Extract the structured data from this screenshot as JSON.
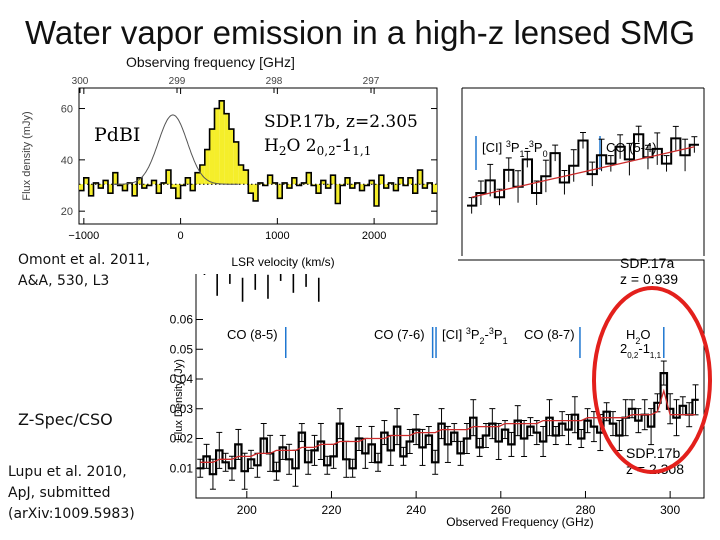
{
  "slide": {
    "title": "Water vapor emission in a high-z lensed SMG",
    "omont_ref": [
      "Omont et al. 2011,",
      "A&A, 530, L3"
    ],
    "zspec_label": "Z-Spec/CSO",
    "lupu_ref": [
      "Lupu et al. 2010,",
      "ApJ, submitted",
      "(arXiv:1009.5983)"
    ]
  },
  "chart_data": [
    {
      "id": "pdbi",
      "type": "bar",
      "instrument_label": "PdBI",
      "source_label": "SDP.17b, z=2.305",
      "line_label": "H2O 2(0,2)-1(1,1)",
      "line_label_parts": {
        "species": "H",
        "sub2": "2",
        "o": "O 2",
        "up": "0,2",
        "dash": "-1",
        "lo": "1,1"
      },
      "top_axis_label": "Observing frequency [GHz]",
      "top_ticks": [
        "300",
        "299",
        "298",
        "297"
      ],
      "xlabel": "LSR velocity  (km/s)",
      "ylabel": "Flux density  (mJy)",
      "x_ticks": [
        -1000,
        0,
        1000,
        2000
      ],
      "x_tick_labels": [
        "−1000",
        "0",
        "1000",
        "2000"
      ],
      "y_ticks": [
        20,
        40,
        60
      ],
      "xlim": [
        -1050,
        2650
      ],
      "ylim": [
        15,
        68
      ],
      "baseline": 30.5,
      "bin_width": 50,
      "x_start": -1050,
      "values": [
        28,
        33,
        26,
        31,
        29,
        32,
        27,
        35,
        30,
        28,
        31,
        26,
        33,
        29,
        30,
        32,
        27,
        31,
        36,
        29,
        25,
        30,
        33,
        28,
        35,
        38,
        44,
        52,
        60,
        63,
        58,
        52,
        47,
        38,
        36,
        27,
        24,
        31,
        30,
        34,
        31,
        25,
        31,
        29,
        33,
        30,
        31,
        35,
        30,
        27,
        32,
        29,
        34,
        23,
        30,
        33,
        29,
        31,
        28,
        30,
        32,
        22,
        34,
        29,
        31,
        28,
        33,
        30,
        33,
        27,
        36,
        29,
        31,
        27
      ],
      "fit": {
        "center": -80,
        "sigma": 150,
        "peak": 27
      }
    },
    {
      "id": "zspec",
      "type": "line",
      "xlabel": "Observed Frequency (GHz)",
      "ylabel": "Flux Density (Jy)",
      "x_ticks": [
        200,
        220,
        240,
        260,
        280,
        300
      ],
      "y_ticks": [
        0.01,
        0.02,
        0.03,
        0.04,
        0.05,
        0.06
      ],
      "y_tick_labels": [
        "0.01",
        "0.02",
        "0.03",
        "0.04",
        "0.05",
        "0.06"
      ],
      "xlim": [
        188,
        308
      ],
      "ylim": [
        0.0,
        0.08
      ],
      "series": [
        {
          "name": "SDP.17b",
          "z_label": "z = 2.308",
          "x": [
            189,
            190.5,
            192,
            193.5,
            195,
            196.5,
            198,
            199.5,
            201,
            202.5,
            204,
            205.5,
            207,
            208.5,
            210,
            211.5,
            213,
            214.5,
            216,
            217.5,
            219,
            220.5,
            222,
            223.5,
            225,
            226.5,
            228,
            229.5,
            231,
            232.5,
            234,
            235.5,
            237,
            238.5,
            240,
            241.5,
            243,
            244.5,
            246,
            247.5,
            249,
            250.5,
            252,
            253.5,
            255,
            256.5,
            258,
            259.5,
            261,
            262.5,
            264,
            265.5,
            267,
            268.5,
            270,
            271.5,
            273,
            274.5,
            276,
            277.5,
            279,
            280.5,
            282,
            283.5,
            285,
            286.5,
            288,
            289.5,
            291,
            292.5,
            294,
            295.5,
            297,
            298.5,
            300,
            301.5,
            303,
            304.5,
            306
          ],
          "y": [
            0.01,
            0.014,
            0.008,
            0.016,
            0.012,
            0.01,
            0.018,
            0.009,
            0.013,
            0.011,
            0.02,
            0.015,
            0.009,
            0.017,
            0.013,
            0.01,
            0.022,
            0.012,
            0.016,
            0.019,
            0.011,
            0.014,
            0.025,
            0.013,
            0.01,
            0.02,
            0.015,
            0.018,
            0.012,
            0.022,
            0.016,
            0.024,
            0.014,
            0.019,
            0.023,
            0.017,
            0.021,
            0.012,
            0.025,
            0.018,
            0.022,
            0.015,
            0.02,
            0.027,
            0.017,
            0.021,
            0.025,
            0.019,
            0.023,
            0.018,
            0.026,
            0.02,
            0.024,
            0.022,
            0.019,
            0.027,
            0.021,
            0.025,
            0.023,
            0.028,
            0.02,
            0.026,
            0.024,
            0.022,
            0.029,
            0.025,
            0.021,
            0.027,
            0.03,
            0.026,
            0.028,
            0.024,
            0.032,
            0.042,
            0.03,
            0.027,
            0.031,
            0.028,
            0.033
          ],
          "model": [
            0.012,
            0.012,
            0.012,
            0.013,
            0.013,
            0.013,
            0.014,
            0.014,
            0.014,
            0.015,
            0.015,
            0.015,
            0.016,
            0.016,
            0.016,
            0.016,
            0.017,
            0.017,
            0.017,
            0.018,
            0.018,
            0.018,
            0.019,
            0.019,
            0.019,
            0.019,
            0.02,
            0.02,
            0.02,
            0.02,
            0.021,
            0.021,
            0.021,
            0.021,
            0.022,
            0.022,
            0.022,
            0.022,
            0.023,
            0.023,
            0.023,
            0.023,
            0.023,
            0.024,
            0.024,
            0.024,
            0.024,
            0.024,
            0.025,
            0.025,
            0.025,
            0.025,
            0.025,
            0.025,
            0.026,
            0.026,
            0.026,
            0.026,
            0.026,
            0.026,
            0.026,
            0.027,
            0.027,
            0.027,
            0.027,
            0.027,
            0.027,
            0.027,
            0.028,
            0.028,
            0.028,
            0.028,
            0.029,
            0.036,
            0.028,
            0.028,
            0.028,
            0.028,
            0.028
          ]
        },
        {
          "name": "SDP.17a",
          "z_label": "z = 0.939",
          "partial": true,
          "x": [
            190,
            193,
            196,
            199,
            202,
            205,
            208,
            211,
            214,
            217
          ],
          "y": [
            0.079,
            0.072,
            0.076,
            0.07,
            0.074,
            0.071,
            0.077,
            0.073,
            0.075,
            0.07
          ]
        }
      ],
      "line_markers": [
        {
          "label": "CO (8-5)",
          "freq": 209.2
        },
        {
          "label": "CO (7-6)",
          "freq": 243.9
        },
        {
          "label": "[CI] 3P2-3P1",
          "freq": 244.7
        },
        {
          "label": "CO (8-7)",
          "freq": 278.7
        },
        {
          "label": "H2O 2(0,2)-1(1,1)",
          "freq": 298.5
        }
      ],
      "highlight": {
        "label": "H2O emission line",
        "color": "#e3201c"
      }
    },
    {
      "id": "sdp17a",
      "type": "line",
      "partial": true,
      "source_label": "SDP.17a",
      "z_label": "z = 0.939",
      "markers": [
        {
          "label": "[CI] 3P1-3P0"
        },
        {
          "label": "CO (5-4)"
        }
      ],
      "y": [
        0.024,
        0.03,
        0.036,
        0.028,
        0.041,
        0.033,
        0.046,
        0.03,
        0.038,
        0.049,
        0.035,
        0.043,
        0.055,
        0.039,
        0.048,
        0.044,
        0.052,
        0.046,
        0.058,
        0.047,
        0.051,
        0.044,
        0.056,
        0.048,
        0.053
      ]
    }
  ],
  "colors": {
    "gaussian_fill": "#f5ee2a",
    "data_line": "#000000",
    "model_line": "#cc2b2b",
    "marker_line": "#1f77d1",
    "highlight": "#e3201c"
  }
}
